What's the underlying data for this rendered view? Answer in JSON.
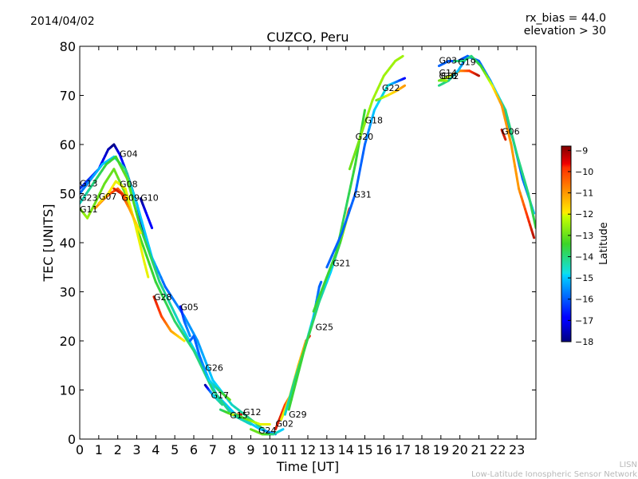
{
  "header": {
    "date": "2014/04/02",
    "rx_bias": "rx_bias = 44.0",
    "elevation": "elevation > 30"
  },
  "footer": {
    "line1": "LISN",
    "line2": "Low-Latitude Ionospheric Sensor Network"
  },
  "chart_data": {
    "type": "line",
    "title": "CUZCO, Peru",
    "xlabel": "Time [UT]",
    "ylabel": "TEC [UNITS]",
    "xlim": [
      0,
      24
    ],
    "ylim": [
      0,
      80
    ],
    "xticks": [
      "0",
      "1",
      "2",
      "3",
      "4",
      "5",
      "6",
      "7",
      "8",
      "9",
      "10",
      "11",
      "12",
      "13",
      "14",
      "15",
      "16",
      "17",
      "18",
      "19",
      "20",
      "21",
      "22",
      "23"
    ],
    "yticks": [
      "0",
      "10",
      "20",
      "30",
      "40",
      "50",
      "60",
      "70",
      "80"
    ],
    "grid": false,
    "colorbar": {
      "label": "Latitude",
      "min": -18,
      "max": -8.8,
      "ticks": [
        "−9",
        "−10",
        "−11",
        "−12",
        "−13",
        "−14",
        "−15",
        "−16",
        "−17",
        "−18"
      ],
      "tick_values": [
        -9,
        -10,
        -11,
        -12,
        -13,
        -14,
        -15,
        -16,
        -17,
        -18
      ]
    },
    "series": [
      {
        "name": "G04",
        "label_x": 2.1,
        "label_y": 57.5,
        "points": [
          [
            0.0,
            51,
            -16.5
          ],
          [
            0.5,
            53,
            -16.5
          ],
          [
            1.0,
            55,
            -16.8
          ],
          [
            1.5,
            59,
            -17.5
          ],
          [
            1.8,
            60,
            -18
          ],
          [
            2.1,
            58,
            -17
          ],
          [
            2.5,
            54,
            -16.5
          ],
          [
            3.0,
            48,
            -17
          ],
          [
            3.5,
            40,
            -17.8
          ]
        ]
      },
      {
        "name": "G13",
        "label_x": 0.0,
        "label_y": 51.5,
        "points": [
          [
            0.0,
            50,
            -16
          ],
          [
            0.6,
            53,
            -15.5
          ],
          [
            1.2,
            56,
            -15
          ],
          [
            1.8,
            57.5,
            -15
          ],
          [
            2.4,
            55,
            -14
          ],
          [
            3.0,
            48,
            -15
          ],
          [
            3.8,
            37,
            -15
          ],
          [
            4.5,
            31,
            -16
          ],
          [
            5.5,
            25,
            -15.5
          ],
          [
            6.2,
            20,
            -15.5
          ],
          [
            7.0,
            12,
            -15
          ],
          [
            8.0,
            7,
            -14.5
          ],
          [
            9.0,
            4,
            -14
          ],
          [
            10.0,
            1,
            -14
          ]
        ]
      },
      {
        "name": "G23",
        "label_x": 0.0,
        "label_y": 48.5,
        "points": [
          [
            0.0,
            48,
            -14.5
          ],
          [
            0.7,
            52,
            -14
          ],
          [
            1.4,
            56,
            -13.5
          ],
          [
            1.9,
            57.5,
            -13.5
          ],
          [
            2.5,
            53,
            -13
          ],
          [
            3.2,
            43,
            -13.5
          ],
          [
            4.2,
            32,
            -14
          ],
          [
            5.2,
            24,
            -14.5
          ],
          [
            6.2,
            17,
            -15
          ],
          [
            7.2,
            9,
            -15
          ],
          [
            8.2,
            5,
            -15
          ],
          [
            9.5,
            2,
            -15
          ],
          [
            10.3,
            1,
            -16
          ]
        ]
      },
      {
        "name": "G11",
        "label_x": 0.0,
        "label_y": 46.2,
        "points": [
          [
            0.0,
            47,
            -13
          ],
          [
            0.4,
            45,
            -12.5
          ],
          [
            0.8,
            48,
            -13
          ],
          [
            1.3,
            52,
            -13
          ],
          [
            1.8,
            55,
            -13
          ],
          [
            2.4,
            50,
            -13
          ],
          [
            3.0,
            43,
            -13.2
          ],
          [
            4.0,
            32,
            -13.5
          ],
          [
            5.0,
            24,
            -13.8
          ],
          [
            6.0,
            18,
            -14
          ],
          [
            7.0,
            10,
            -14
          ],
          [
            8.0,
            5,
            -14.2
          ],
          [
            9.0,
            3,
            -14.5
          ]
        ]
      },
      {
        "name": "G07",
        "label_x": 1.0,
        "label_y": 48.8,
        "points": [
          [
            0.8,
            47,
            -11.2
          ],
          [
            1.3,
            49,
            -10.5
          ],
          [
            1.6,
            50,
            -10
          ],
          [
            2.0,
            51,
            -10.2
          ],
          [
            2.5,
            49,
            -10.8
          ]
        ]
      },
      {
        "name": "G08",
        "label_x": 2.1,
        "label_y": 51.3,
        "points": [
          [
            1.0,
            48,
            -11.5
          ],
          [
            1.5,
            50,
            -11.8
          ],
          [
            1.9,
            52.5,
            -12
          ],
          [
            2.4,
            51,
            -12
          ],
          [
            2.9,
            44,
            -12
          ],
          [
            3.4,
            36,
            -12
          ],
          [
            3.6,
            33,
            -12
          ]
        ]
      },
      {
        "name": "G09",
        "label_x": 2.2,
        "label_y": 48.5,
        "points": [
          [
            1.8,
            51,
            -9.5
          ],
          [
            2.2,
            50,
            -9.5
          ],
          [
            2.6,
            47,
            -11
          ],
          [
            3.2,
            42,
            -12
          ]
        ]
      },
      {
        "name": "G10",
        "label_x": 3.2,
        "label_y": 48.5,
        "points": [
          [
            3.2,
            49,
            -18
          ],
          [
            3.5,
            46,
            -17
          ],
          [
            3.8,
            43,
            -17
          ]
        ]
      },
      {
        "name": "G28",
        "label_x": 3.9,
        "label_y": 28.3,
        "points": [
          [
            3.9,
            29,
            -9.5
          ],
          [
            4.3,
            25,
            -10
          ],
          [
            4.8,
            22,
            -11
          ],
          [
            5.5,
            20,
            -12
          ]
        ]
      },
      {
        "name": "G05",
        "label_x": 5.3,
        "label_y": 26.3,
        "points": [
          [
            5.3,
            27,
            -17
          ],
          [
            5.5,
            24,
            -16
          ],
          [
            5.8,
            21,
            -15.5
          ]
        ]
      },
      {
        "name": "G26",
        "label_x": 6.6,
        "label_y": 13.9,
        "points": [
          [
            5.8,
            20,
            -16
          ],
          [
            6.0,
            21,
            -16
          ],
          [
            6.3,
            17,
            -16
          ],
          [
            6.8,
            12,
            -15
          ],
          [
            7.3,
            10,
            -14
          ],
          [
            7.9,
            8,
            -13
          ]
        ]
      },
      {
        "name": "G17",
        "label_x": 6.9,
        "label_y": 8.3,
        "points": [
          [
            6.6,
            11,
            -18
          ],
          [
            7.0,
            9,
            -15
          ],
          [
            7.5,
            7,
            -14
          ]
        ]
      },
      {
        "name": "G15",
        "label_x": 7.9,
        "label_y": 4.2,
        "points": [
          [
            7.4,
            6,
            -14
          ],
          [
            8.0,
            5,
            -13
          ],
          [
            8.5,
            5,
            -9
          ]
        ]
      },
      {
        "name": "G12",
        "label_x": 8.6,
        "label_y": 4.9,
        "points": [
          [
            8.2,
            5,
            -14
          ],
          [
            8.8,
            4,
            -13
          ],
          [
            9.5,
            3,
            -12
          ],
          [
            10.0,
            3,
            -12
          ]
        ]
      },
      {
        "name": "G24",
        "label_x": 9.4,
        "label_y": 1.1,
        "points": [
          [
            9.0,
            2,
            -13
          ],
          [
            9.6,
            1,
            -13
          ],
          [
            10.2,
            1,
            -14
          ],
          [
            10.7,
            2,
            -15
          ]
        ]
      },
      {
        "name": "G02",
        "label_x": 10.3,
        "label_y": 2.5,
        "points": [
          [
            10.3,
            2,
            -9.5
          ],
          [
            10.5,
            4,
            -9.5
          ],
          [
            10.8,
            7,
            -10
          ],
          [
            11.1,
            9,
            -11.5
          ]
        ]
      },
      {
        "name": "G29",
        "label_x": 11.0,
        "label_y": 4.4,
        "points": [
          [
            10.6,
            4,
            -12
          ],
          [
            11.0,
            8,
            -12
          ],
          [
            11.5,
            15,
            -11.5
          ],
          [
            11.9,
            20,
            -11
          ],
          [
            12.1,
            21,
            -9.5
          ]
        ]
      },
      {
        "name": "G25",
        "label_x": 12.4,
        "label_y": 22.2,
        "points": [
          [
            10.8,
            5,
            -14.5
          ],
          [
            11.3,
            12,
            -14
          ],
          [
            11.8,
            18,
            -14
          ],
          [
            12.3,
            25,
            -15
          ],
          [
            12.6,
            31,
            -16
          ],
          [
            12.7,
            32,
            -16
          ]
        ]
      },
      {
        "name": "G21",
        "label_x": 13.3,
        "label_y": 35.2,
        "points": [
          [
            11.0,
            6,
            -13.5
          ],
          [
            11.8,
            18,
            -13.5
          ],
          [
            12.6,
            28,
            -14
          ],
          [
            13.2,
            34,
            -15
          ],
          [
            13.7,
            40,
            -13.5
          ],
          [
            14.0,
            44,
            -12
          ],
          [
            14.1,
            46,
            -11.5
          ],
          [
            14.2,
            47,
            -9.5
          ]
        ]
      },
      {
        "name": "G31",
        "label_x": 14.4,
        "label_y": 49.2,
        "points": [
          [
            12.3,
            26,
            -13.5
          ],
          [
            13.0,
            33,
            -13.5
          ],
          [
            13.5,
            38,
            -13.5
          ],
          [
            14.0,
            47,
            -13.8
          ],
          [
            14.5,
            56,
            -13.5
          ],
          [
            15.0,
            67,
            -13.5
          ]
        ]
      },
      {
        "name": "G18",
        "label_x": 15.0,
        "label_y": 64.3,
        "points": [
          [
            13.0,
            35,
            -16
          ],
          [
            13.8,
            42,
            -16
          ],
          [
            14.5,
            50,
            -16
          ],
          [
            15.0,
            60,
            -16
          ],
          [
            15.5,
            67,
            -15
          ],
          [
            16.2,
            72,
            -14.5
          ],
          [
            16.8,
            73,
            -16
          ],
          [
            17.1,
            73.5,
            -17
          ]
        ]
      },
      {
        "name": "G22",
        "label_x": 15.9,
        "label_y": 70.9,
        "points": [
          [
            15.6,
            69,
            -13
          ],
          [
            16.2,
            70,
            -12
          ],
          [
            16.7,
            71,
            -11.5
          ],
          [
            17.1,
            72,
            -11
          ]
        ]
      },
      {
        "name": "G20",
        "label_x": 14.5,
        "label_y": 61.0,
        "points": [
          [
            14.2,
            55,
            -13
          ],
          [
            14.8,
            62,
            -12.8
          ],
          [
            15.4,
            69,
            -12.5
          ],
          [
            16.0,
            74,
            -12.5
          ],
          [
            16.6,
            77,
            -12.5
          ],
          [
            17.0,
            78,
            -12.5
          ]
        ]
      },
      {
        "name": "G03",
        "label_x": 18.9,
        "label_y": 76.5,
        "points": [
          [
            18.9,
            76,
            -16
          ],
          [
            19.4,
            77,
            -16
          ],
          [
            19.9,
            77,
            -16.5
          ],
          [
            20.4,
            78,
            -16
          ],
          [
            21.0,
            77,
            -16
          ],
          [
            21.6,
            73,
            -16.5
          ],
          [
            22.2,
            68,
            -16
          ],
          [
            22.8,
            61,
            -16
          ],
          [
            23.3,
            53,
            -16
          ],
          [
            23.9,
            46,
            -15
          ]
        ]
      },
      {
        "name": "G16",
        "label_x": 18.9,
        "label_y": 73.3,
        "points": [
          [
            18.9,
            73,
            -13
          ],
          [
            19.5,
            74,
            -12
          ],
          [
            20.0,
            75,
            -11
          ],
          [
            20.5,
            75,
            -10
          ],
          [
            21.0,
            74,
            -9.2
          ]
        ]
      },
      {
        "name": "G14",
        "label_x": 18.9,
        "label_y": 74.0,
        "points": [
          [
            18.9,
            72,
            -14
          ],
          [
            19.4,
            73,
            -14
          ],
          [
            19.9,
            75,
            -15
          ],
          [
            20.4,
            78,
            -16
          ],
          [
            21.0,
            77,
            -16
          ],
          [
            21.6,
            73,
            -15.5
          ],
          [
            22.4,
            67,
            -14
          ],
          [
            23.0,
            58,
            -14
          ],
          [
            23.6,
            50,
            -14
          ],
          [
            24.0,
            43,
            -13.5
          ]
        ]
      },
      {
        "name": "G19",
        "label_x": 19.9,
        "label_y": 76.2,
        "points": [
          [
            19.7,
            77,
            -14
          ],
          [
            20.2,
            77,
            -14
          ],
          [
            20.6,
            78,
            -14
          ],
          [
            21.1,
            76,
            -13.5
          ],
          [
            21.7,
            72,
            -12
          ],
          [
            22.2,
            68,
            -11
          ],
          [
            22.7,
            60,
            -11
          ],
          [
            23.1,
            51,
            -11
          ],
          [
            23.5,
            46,
            -10
          ],
          [
            23.9,
            41,
            -9.2
          ]
        ]
      },
      {
        "name": "G32",
        "label_x": 19.0,
        "label_y": 73.3,
        "points": [
          [
            19.0,
            73,
            -13
          ],
          [
            19.3,
            73,
            -12.5
          ]
        ]
      },
      {
        "name": "G06",
        "label_x": 22.2,
        "label_y": 62.0,
        "points": [
          [
            22.2,
            63,
            -9.2
          ],
          [
            22.4,
            61,
            -9.5
          ]
        ]
      }
    ]
  }
}
